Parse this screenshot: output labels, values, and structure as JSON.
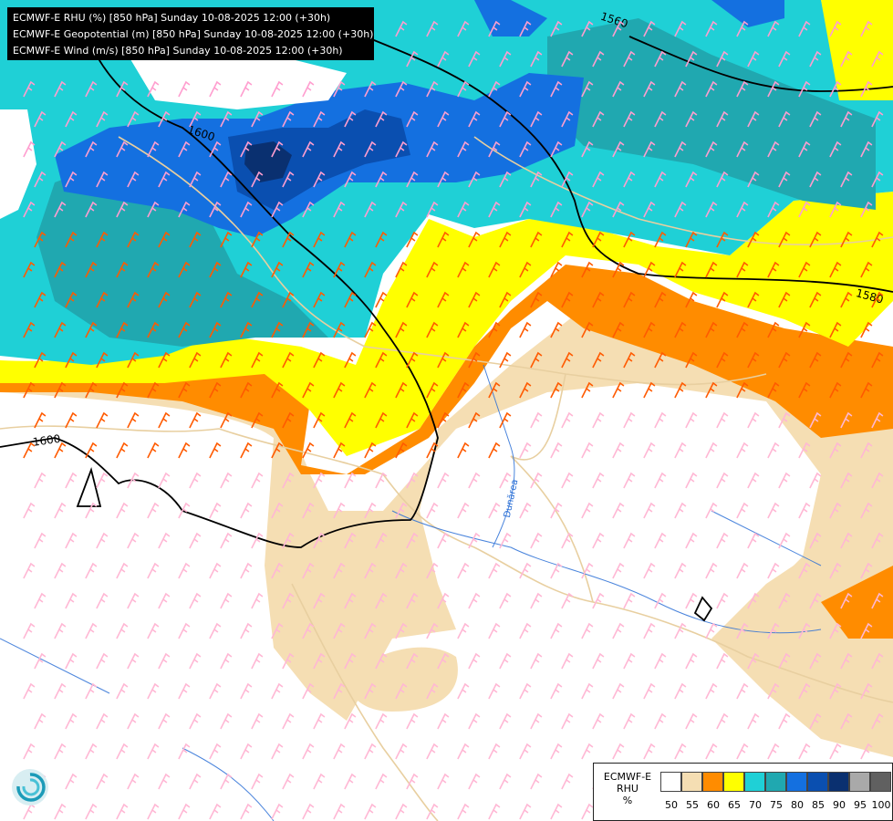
{
  "header": {
    "line1": "ECMWF-E RHU (%) [850 hPa] Sunday 10-08-2025 12:00 (+30h)",
    "line2": "ECMWF-E Geopotential (m) [850 hPa] Sunday 10-08-2025 12:00 (+30h)",
    "line3": "ECMWF-E Wind (m/s) [850 hPa] Sunday 10-08-2025 12:00 (+30h)"
  },
  "legend": {
    "model": "ECMWF-E",
    "variable": "RHU",
    "unit": "%",
    "bins": [
      {
        "label": "50",
        "color": "#ffffff"
      },
      {
        "label": "55",
        "color": "#f5deb3"
      },
      {
        "label": "60",
        "color": "#ff8c00"
      },
      {
        "label": "65",
        "color": "#ffff00"
      },
      {
        "label": "70",
        "color": "#1fd0d6"
      },
      {
        "label": "75",
        "color": "#20a8b0"
      },
      {
        "label": "80",
        "color": "#1470e0"
      },
      {
        "label": "85",
        "color": "#0a4fb0"
      },
      {
        "label": "90",
        "color": "#0a3070"
      },
      {
        "label": "95",
        "color": "#a9a9a9"
      },
      {
        "label": "100",
        "color": "#606060"
      }
    ]
  },
  "contours": [
    {
      "label": "1560"
    },
    {
      "label": "1600"
    },
    {
      "label": "1580"
    },
    {
      "label": "1600"
    }
  ],
  "river_label": "Dunărea",
  "colors": {
    "background": "#ffffff",
    "border_lines": "#e8cfa0",
    "rivers": "#2a6fd6",
    "contour_lines": "#000000",
    "barbs_moist": "#ff5a00",
    "barbs_humid": "#ff9ecf",
    "barbs_dry": "#ffb7d4"
  },
  "icons": {
    "logo": "ecmwf-swirl-logo"
  }
}
